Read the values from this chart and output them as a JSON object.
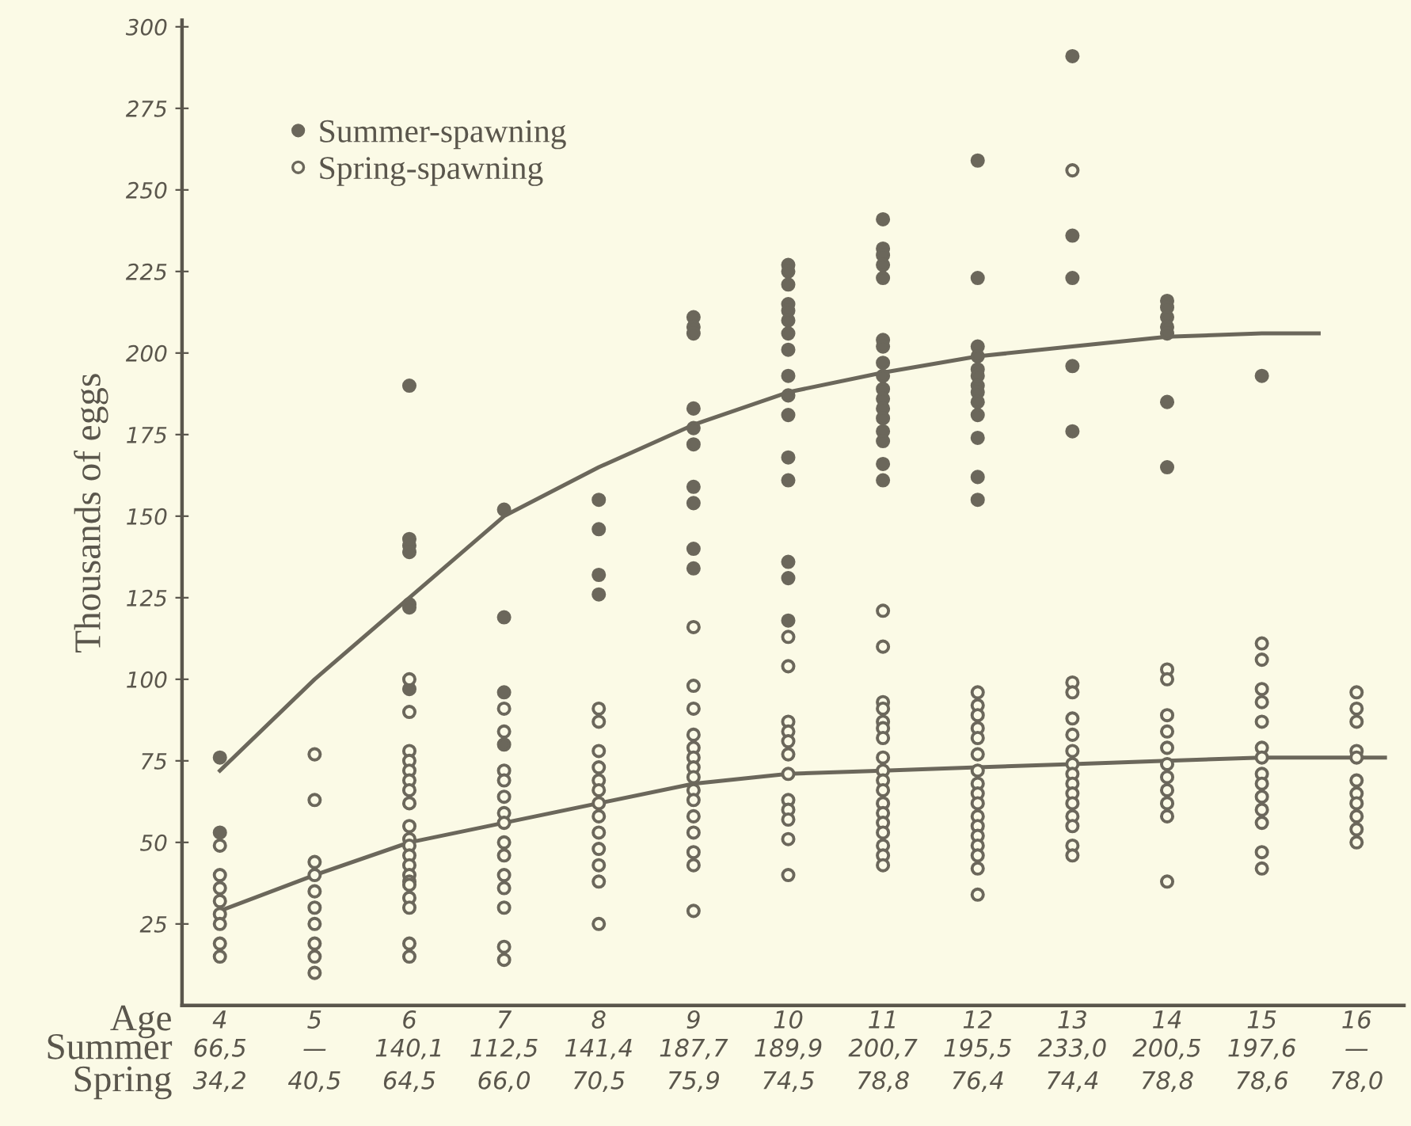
{
  "chart_data": {
    "type": "scatter",
    "ylabel": "Thousands of eggs",
    "xlabel": "Age",
    "legend": "top left",
    "xlim": [
      3.6,
      16.5
    ],
    "ylim": [
      0,
      302
    ],
    "xticks": [
      4,
      5,
      6,
      7,
      8,
      9,
      10,
      11,
      12,
      13,
      14,
      15,
      16
    ],
    "yticks": [
      25,
      50,
      75,
      100,
      125,
      150,
      175,
      200,
      225,
      250,
      275,
      300
    ],
    "series": [
      {
        "name": "Summer-spawning",
        "marker": "circle",
        "color": "#6b675b",
        "x": [
          4,
          4,
          6,
          6,
          6,
          6,
          6,
          6,
          6,
          7,
          7,
          7,
          7,
          8,
          8,
          8,
          8,
          9,
          9,
          9,
          9,
          9,
          9,
          9,
          9,
          9,
          9,
          10,
          10,
          10,
          10,
          10,
          10,
          10,
          10,
          10,
          10,
          10,
          10,
          10,
          10,
          10,
          10,
          11,
          11,
          11,
          11,
          11,
          11,
          11,
          11,
          11,
          11,
          11,
          11,
          11,
          11,
          11,
          11,
          11,
          12,
          12,
          12,
          12,
          12,
          12,
          12,
          12,
          12,
          12,
          12,
          12,
          12,
          13,
          13,
          13,
          13,
          13,
          14,
          14,
          14,
          14,
          14,
          14,
          14,
          15
        ],
        "values": [
          76,
          53,
          190,
          143,
          141,
          139,
          123,
          122,
          97,
          152,
          119,
          96,
          80,
          155,
          146,
          132,
          126,
          211,
          208,
          206,
          183,
          177,
          172,
          159,
          154,
          140,
          134,
          227,
          225,
          221,
          215,
          213,
          210,
          206,
          201,
          193,
          187,
          181,
          168,
          161,
          136,
          131,
          118,
          241,
          232,
          230,
          227,
          223,
          204,
          202,
          197,
          193,
          189,
          186,
          183,
          180,
          176,
          173,
          166,
          161,
          259,
          223,
          202,
          199,
          195,
          193,
          190,
          188,
          185,
          181,
          174,
          162,
          155,
          291,
          236,
          223,
          196,
          176,
          216,
          214,
          211,
          208,
          206,
          185,
          165,
          193
        ]
      },
      {
        "name": "Spring-spawning",
        "marker": "circle",
        "color": "#6b675b",
        "x": [
          4,
          4,
          4,
          4,
          4,
          4,
          4,
          4,
          5,
          5,
          5,
          5,
          5,
          5,
          5,
          5,
          5,
          5,
          6,
          6,
          6,
          6,
          6,
          6,
          6,
          6,
          6,
          6,
          6,
          6,
          6,
          6,
          6,
          6,
          6,
          6,
          6,
          6,
          7,
          7,
          7,
          7,
          7,
          7,
          7,
          7,
          7,
          7,
          7,
          7,
          7,
          7,
          8,
          8,
          8,
          8,
          8,
          8,
          8,
          8,
          8,
          8,
          8,
          8,
          8,
          9,
          9,
          9,
          9,
          9,
          9,
          9,
          9,
          9,
          9,
          9,
          9,
          9,
          9,
          9,
          10,
          10,
          10,
          10,
          10,
          10,
          10,
          10,
          10,
          10,
          10,
          10,
          11,
          11,
          11,
          11,
          11,
          11,
          11,
          11,
          11,
          11,
          11,
          11,
          11,
          11,
          11,
          11,
          11,
          11,
          12,
          12,
          12,
          12,
          12,
          12,
          12,
          12,
          12,
          12,
          12,
          12,
          12,
          12,
          12,
          12,
          12,
          13,
          13,
          13,
          13,
          13,
          13,
          13,
          13,
          13,
          13,
          13,
          13,
          13,
          13,
          13,
          14,
          14,
          14,
          14,
          14,
          14,
          14,
          14,
          14,
          14,
          14,
          15,
          15,
          15,
          15,
          15,
          15,
          15,
          15,
          15,
          15,
          15,
          15,
          15,
          15,
          16,
          16,
          16,
          16,
          16,
          16,
          16,
          16,
          16,
          16,
          16
        ],
        "values": [
          49,
          40,
          36,
          32,
          28,
          25,
          19,
          15,
          77,
          63,
          44,
          40,
          35,
          30,
          25,
          19,
          15,
          10,
          100,
          90,
          78,
          75,
          72,
          69,
          66,
          62,
          55,
          51,
          49,
          46,
          43,
          40,
          38,
          37,
          33,
          30,
          19,
          15,
          91,
          84,
          72,
          69,
          64,
          59,
          56,
          50,
          46,
          40,
          36,
          30,
          18,
          14,
          91,
          87,
          78,
          73,
          69,
          66,
          62,
          58,
          53,
          48,
          43,
          38,
          25,
          116,
          98,
          91,
          83,
          79,
          76,
          73,
          70,
          66,
          63,
          58,
          53,
          47,
          43,
          29,
          113,
          104,
          87,
          84,
          81,
          77,
          71,
          63,
          60,
          57,
          51,
          40,
          121,
          110,
          93,
          91,
          87,
          85,
          82,
          76,
          72,
          69,
          66,
          62,
          59,
          56,
          53,
          49,
          46,
          43,
          96,
          92,
          89,
          85,
          82,
          77,
          72,
          68,
          65,
          62,
          58,
          55,
          52,
          49,
          46,
          42,
          34,
          256,
          99,
          96,
          88,
          83,
          78,
          74,
          71,
          68,
          65,
          62,
          58,
          55,
          49,
          46,
          103,
          100,
          89,
          84,
          79,
          74,
          70,
          66,
          62,
          58,
          38,
          111,
          106,
          97,
          93,
          87,
          79,
          76,
          71,
          68,
          64,
          60,
          56,
          47,
          42,
          96,
          91,
          87,
          78,
          76,
          69,
          65,
          62,
          58,
          54,
          50
        ]
      },
      {
        "type": "line",
        "color": "#6b675b",
        "x": [
          4,
          5,
          6,
          7,
          8,
          9,
          10,
          11,
          12,
          13,
          14,
          15,
          15.6
        ],
        "values": [
          72,
          100,
          125,
          150,
          165,
          178,
          188,
          194,
          199,
          202,
          205,
          206,
          206
        ]
      },
      {
        "type": "line",
        "color": "#6b675b",
        "x": [
          4,
          5,
          6,
          7,
          8,
          9,
          10,
          11,
          12,
          13,
          14,
          15,
          16,
          16.3
        ],
        "values": [
          29,
          40,
          50,
          56,
          62,
          68,
          71,
          72,
          73,
          74,
          75,
          76,
          76,
          76
        ]
      }
    ],
    "annotations": [
      "Summer",
      "Spring",
      "66,5",
      "—",
      "140,1",
      "112,5",
      "141,4",
      "187,7",
      "189,9",
      "200,7",
      "195,5",
      "233,0",
      "200,5",
      "197,6",
      "—",
      "34,2",
      "40,5",
      "64,5",
      "66,0",
      "70,5",
      "75,9",
      "74,5",
      "78,8",
      "76,4",
      "74,4",
      "78,8",
      "78,6",
      "78,0"
    ]
  }
}
